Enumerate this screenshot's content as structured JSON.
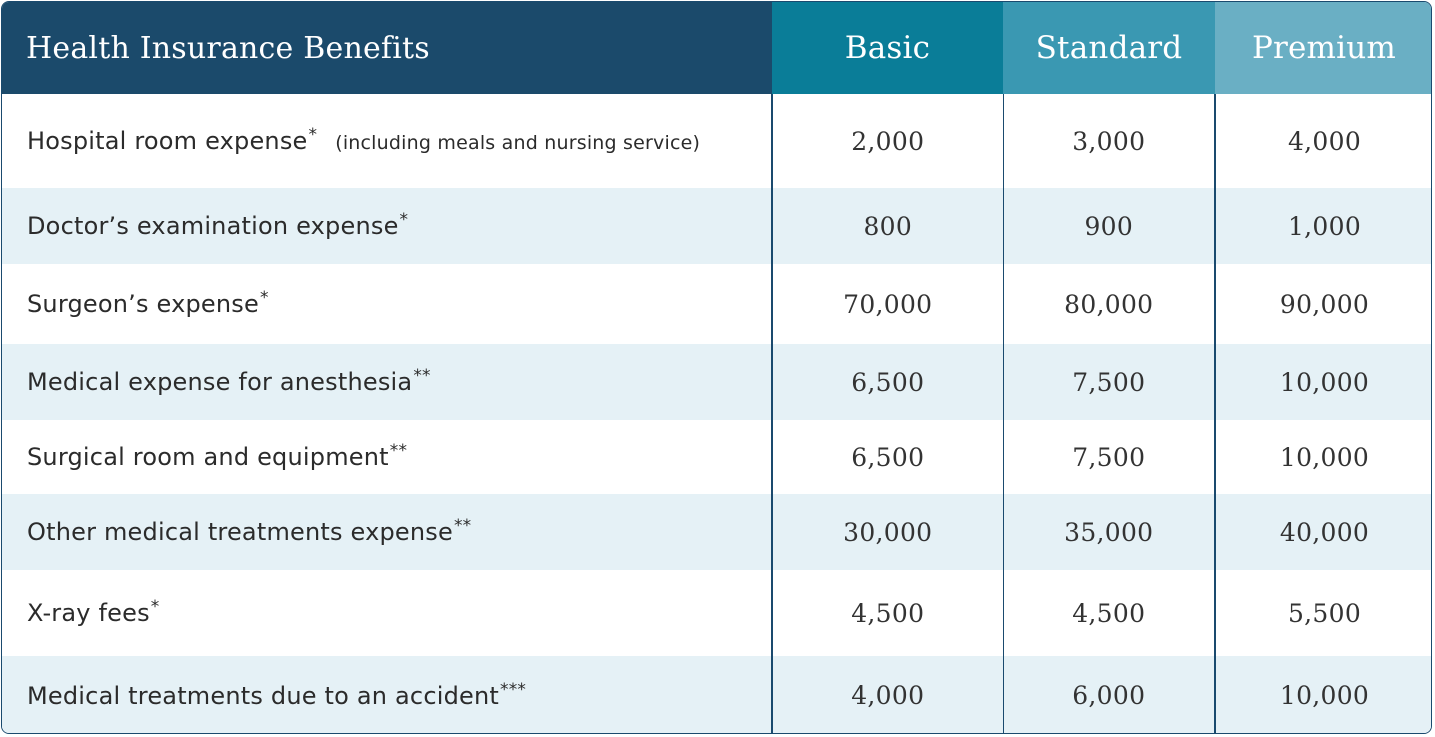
{
  "table": {
    "title": "Health Insurance Benefits",
    "columns": [
      "Basic",
      "Standard",
      "Premium"
    ],
    "colors": {
      "header_title_bg": "#1b4a6b",
      "header_basic_bg": "#0a7d98",
      "header_standard_bg": "#3a98b2",
      "header_premium_bg": "#6aafc4",
      "row_alt_bg": "#e5f1f6",
      "border": "#1a4a6e"
    },
    "rows": [
      {
        "label": "Hospital room expense",
        "mark": "*",
        "note": "(including meals and nursing service)",
        "values": [
          "2,000",
          "3,000",
          "4,000"
        ]
      },
      {
        "label": "Doctor’s examination expense",
        "mark": "*",
        "note": "",
        "values": [
          "800",
          "900",
          "1,000"
        ]
      },
      {
        "label": "Surgeon’s expense",
        "mark": "*",
        "note": "",
        "values": [
          "70,000",
          "80,000",
          "90,000"
        ]
      },
      {
        "label": "Medical expense for anesthesia",
        "mark": "**",
        "note": "",
        "values": [
          "6,500",
          "7,500",
          "10,000"
        ]
      },
      {
        "label": "Surgical room and equipment",
        "mark": "**",
        "note": "",
        "values": [
          "6,500",
          "7,500",
          "10,000"
        ]
      },
      {
        "label": "Other medical treatments expense",
        "mark": "**",
        "note": "",
        "values": [
          "30,000",
          "35,000",
          "40,000"
        ]
      },
      {
        "label": "X-ray fees",
        "mark": "*",
        "note": "",
        "values": [
          "4,500",
          "4,500",
          "5,500"
        ]
      },
      {
        "label": "Medical treatments due to an accident",
        "mark": "***",
        "note": "",
        "values": [
          "4,000",
          "6,000",
          "10,000"
        ]
      }
    ]
  }
}
